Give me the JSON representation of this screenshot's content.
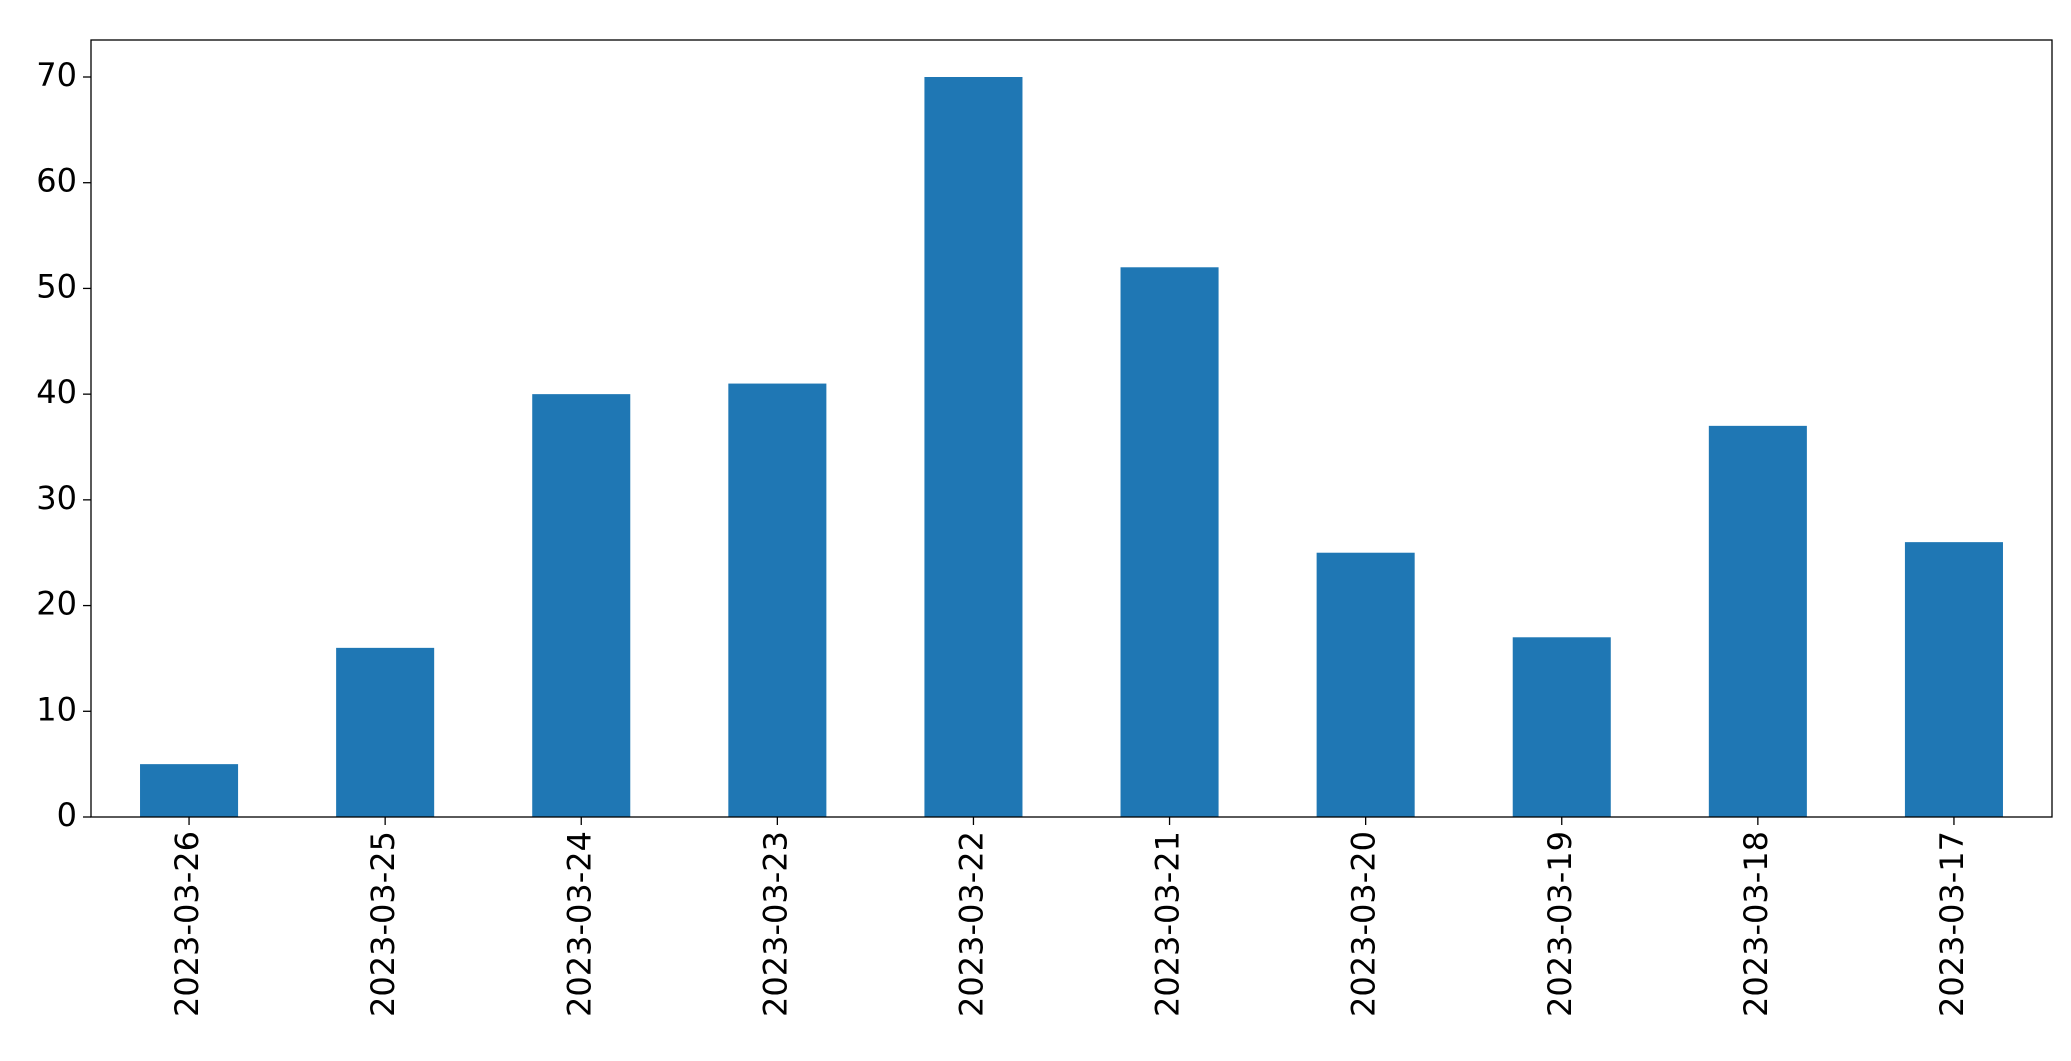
{
  "chart_data": {
    "type": "bar",
    "categories": [
      "2023-03-26",
      "2023-03-25",
      "2023-03-24",
      "2023-03-23",
      "2023-03-22",
      "2023-03-21",
      "2023-03-20",
      "2023-03-19",
      "2023-03-18",
      "2023-03-17"
    ],
    "values": [
      5,
      16,
      40,
      41,
      70,
      52,
      25,
      17,
      37,
      26
    ],
    "color": "#1f77b4",
    "ylim": [
      0,
      73.5
    ],
    "yticks": [
      0,
      10,
      20,
      30,
      40,
      50,
      60,
      70
    ],
    "grid": false
  }
}
